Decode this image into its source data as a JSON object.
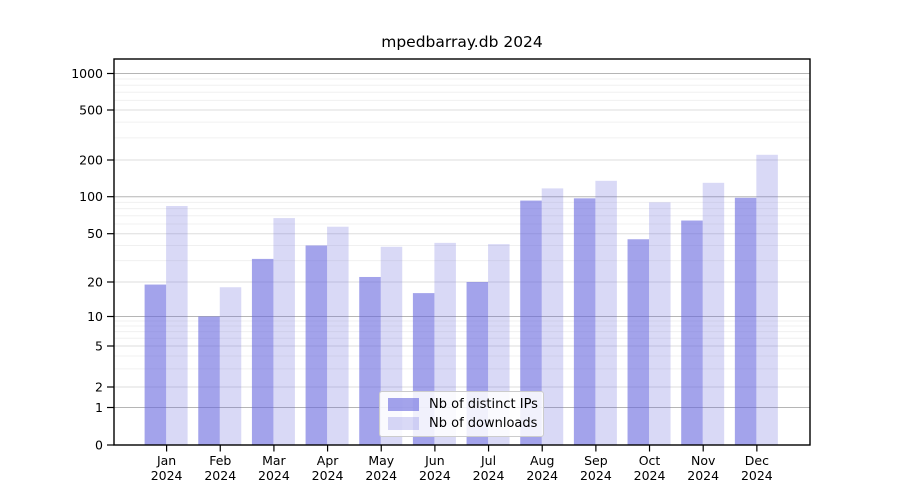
{
  "chart_data": {
    "type": "bar",
    "title": "mpedbarray.db 2024",
    "categories": [
      "Jan 2024",
      "Feb 2024",
      "Mar 2024",
      "Apr 2024",
      "May 2024",
      "Jun 2024",
      "Jul 2024",
      "Aug 2024",
      "Sep 2024",
      "Oct 2024",
      "Nov 2024",
      "Dec 2024"
    ],
    "series": [
      {
        "name": "Nb of distinct IPs",
        "color": "#6666dd",
        "alpha": 0.6,
        "css": "rgba(102,102,221,0.60)",
        "values": [
          19,
          10,
          31,
          40,
          22,
          16,
          20,
          93,
          97,
          45,
          64,
          98
        ]
      },
      {
        "name": "Nb of downloads",
        "color": "#6666dd",
        "alpha": 0.25,
        "css": "rgba(102,102,221,0.25)",
        "values": [
          84,
          18,
          67,
          57,
          39,
          42,
          41,
          117,
          135,
          90,
          130,
          220
        ]
      }
    ],
    "xlabel": "",
    "ylabel": "",
    "yscale": "symlog",
    "y_ticks": [
      0,
      1,
      2,
      5,
      10,
      20,
      50,
      100,
      200,
      500,
      1000
    ],
    "ylim": [
      0,
      1300
    ],
    "grid": "both",
    "legend_position": "lower center",
    "colors": {
      "grid_major": "#b5b5b5",
      "grid_submajor": "#dedede",
      "grid_minor": "#f0f0f0",
      "axis": "#000000",
      "background": "#ffffff"
    }
  }
}
